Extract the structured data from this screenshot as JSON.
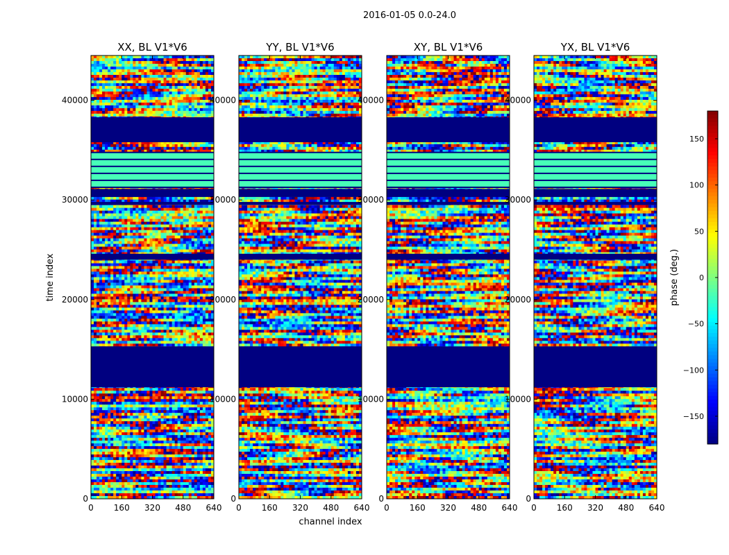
{
  "figure": {
    "suptitle": "2016-01-05 0.0-24.0",
    "xlabel": "channel index",
    "ylabel": "time index"
  },
  "chart_data": {
    "type": "heatmap",
    "title": "2016-01-05 0.0-24.0",
    "xlabel": "channel index",
    "ylabel": "time index",
    "xlim": [
      0,
      640
    ],
    "ylim": [
      0,
      44500
    ],
    "xticks": [
      "0",
      "160",
      "320",
      "480",
      "640"
    ],
    "xtick_values": [
      0,
      160,
      320,
      480,
      640
    ],
    "yticks": [
      "0",
      "10000",
      "20000",
      "30000",
      "40000"
    ],
    "ytick_values": [
      0,
      10000,
      20000,
      30000,
      40000
    ],
    "panels": [
      {
        "title": "XX, BL V1*V6",
        "pol": "XX"
      },
      {
        "title": "YY, BL V1*V6",
        "pol": "YY"
      },
      {
        "title": "XY, BL V1*V6",
        "pol": "XY"
      },
      {
        "title": "YX, BL V1*V6",
        "pol": "YX"
      }
    ],
    "colorbar": {
      "label": "phase (deg.)",
      "range": [
        -180,
        180
      ],
      "ticks": [
        "150",
        "100",
        "50",
        "0",
        "−50",
        "−100",
        "−150"
      ],
      "tick_values": [
        150,
        100,
        50,
        0,
        -50,
        -100,
        -150
      ],
      "colormap": "jet"
    },
    "flagged_bands": [
      {
        "from": 11200,
        "to": 15300,
        "phase": -180
      },
      {
        "from": 35800,
        "to": 38300,
        "phase": -180
      },
      {
        "from": 30300,
        "to": 31100,
        "phase": -180
      },
      {
        "from": 24000,
        "to": 24600,
        "phase": -180
      },
      {
        "from": 29500,
        "to": 29800,
        "phase": -180
      }
    ],
    "green_bands": [
      {
        "from": 31200,
        "to": 34800,
        "phase": -20
      }
    ]
  }
}
